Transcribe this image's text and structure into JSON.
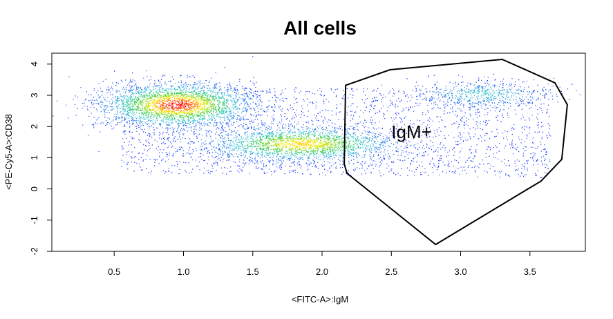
{
  "chart_data": {
    "type": "scatter",
    "title": "All cells",
    "xlabel": "<FITC-A>:IgM",
    "ylabel": "<PE-Cy5-A>:CD38",
    "xlim": [
      0.05,
      3.9
    ],
    "ylim": [
      -2.0,
      4.35
    ],
    "x_ticks": [
      "0.5",
      "1.0",
      "1.5",
      "2.0",
      "2.5",
      "3.0",
      "3.5"
    ],
    "x_tick_values": [
      0.5,
      1.0,
      1.5,
      2.0,
      2.5,
      3.0,
      3.5
    ],
    "y_ticks": [
      "-2",
      "-1",
      "0",
      "1",
      "2",
      "3",
      "4"
    ],
    "y_tick_values": [
      -2,
      -1,
      0,
      1,
      2,
      3,
      4
    ],
    "grid": false,
    "density_coloring": "blue-cyan-green-yellow-red (low to high density)",
    "colors": {
      "low": "#1a3cff",
      "mid_low": "#2ec4d6",
      "mid": "#33cc33",
      "mid_high": "#ffee00",
      "high": "#ff0000",
      "gate": "#000000"
    },
    "populations": [
      {
        "center_x": 0.95,
        "center_y": 2.7,
        "spread_x": 0.22,
        "spread_y": 0.28,
        "weight": 0.4
      },
      {
        "center_x": 1.85,
        "center_y": 1.45,
        "spread_x": 0.28,
        "spread_y": 0.22,
        "weight": 0.3
      },
      {
        "center_x": 3.15,
        "center_y": 3.05,
        "spread_x": 0.2,
        "spread_y": 0.18,
        "weight": 0.08
      }
    ],
    "gate": {
      "label": "IgM+",
      "label_position": [
        2.5,
        1.85
      ],
      "polygon": [
        [
          2.17,
          3.32
        ],
        [
          2.49,
          3.82
        ],
        [
          3.3,
          4.15
        ],
        [
          3.68,
          3.4
        ],
        [
          3.77,
          2.7
        ],
        [
          3.73,
          0.95
        ],
        [
          3.58,
          0.25
        ],
        [
          2.82,
          -1.78
        ],
        [
          2.18,
          0.5
        ],
        [
          2.16,
          0.8
        ]
      ]
    }
  }
}
